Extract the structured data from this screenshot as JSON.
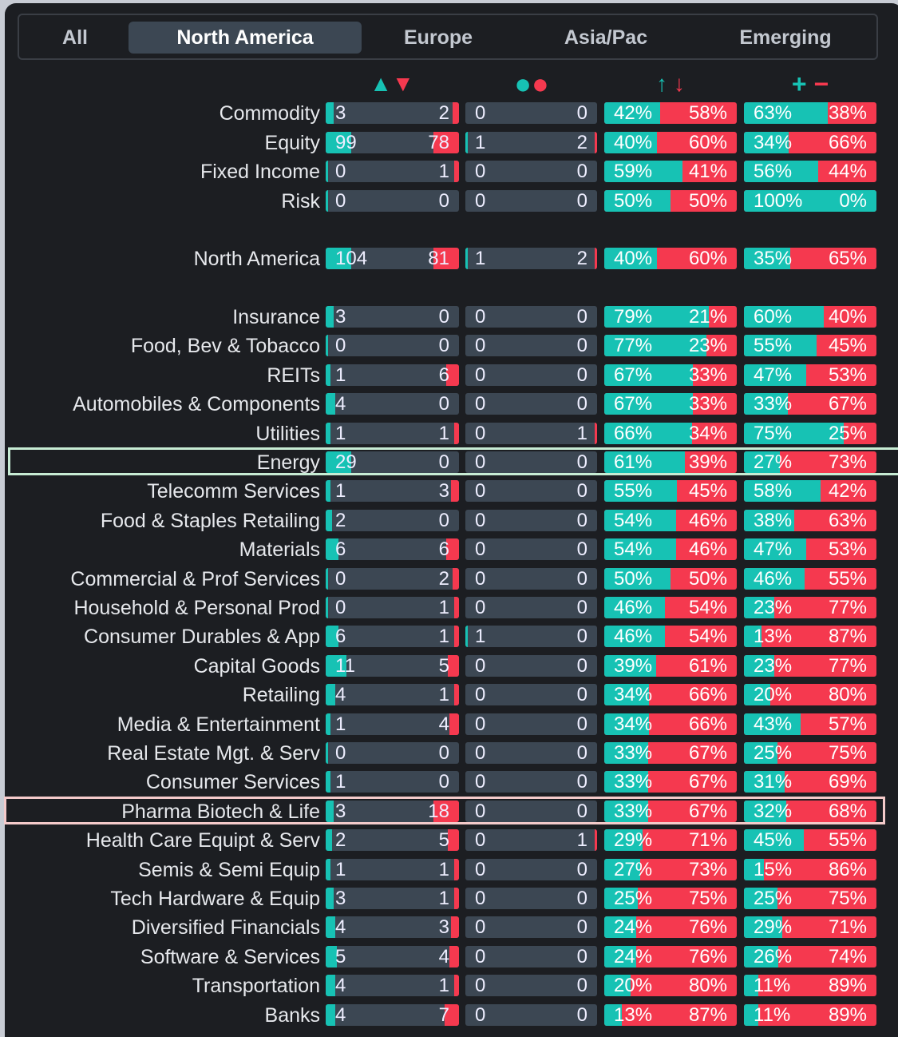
{
  "tabs": [
    "All",
    "North America",
    "Europe",
    "Asia/Pac",
    "Emerging"
  ],
  "active_tab": 1,
  "headers": {
    "counts": [
      "▲",
      "▼"
    ],
    "dots": [
      "●",
      "●"
    ],
    "arrows": [
      "↑",
      "↓"
    ],
    "signs": [
      "+",
      "−"
    ]
  },
  "colors": {
    "up": "#17c2b4",
    "down": "#f5394f",
    "bar": "#3c4753"
  },
  "groups": [
    {
      "rows": [
        [
          "Commodity",
          "3",
          "2",
          "0",
          "0",
          "42%",
          "58%",
          "63%",
          "38%"
        ],
        [
          "Equity",
          "99",
          "78",
          "1",
          "2",
          "40%",
          "60%",
          "34%",
          "66%"
        ],
        [
          "Fixed Income",
          "0",
          "1",
          "0",
          "0",
          "59%",
          "41%",
          "56%",
          "44%"
        ],
        [
          "Risk",
          "0",
          "0",
          "0",
          "0",
          "50%",
          "50%",
          "100%",
          "0%"
        ]
      ]
    },
    {
      "rows": [
        [
          "North America",
          "104",
          "81",
          "1",
          "2",
          "40%",
          "60%",
          "35%",
          "65%"
        ]
      ]
    },
    {
      "rows": [
        [
          "Insurance",
          "3",
          "0",
          "0",
          "0",
          "79%",
          "21%",
          "60%",
          "40%"
        ],
        [
          "Food, Bev & Tobacco",
          "0",
          "0",
          "0",
          "0",
          "77%",
          "23%",
          "55%",
          "45%"
        ],
        [
          "REITs",
          "1",
          "6",
          "0",
          "0",
          "67%",
          "33%",
          "47%",
          "53%"
        ],
        [
          "Automobiles & Components",
          "4",
          "0",
          "0",
          "0",
          "67%",
          "33%",
          "33%",
          "67%"
        ],
        [
          "Utilities",
          "1",
          "1",
          "0",
          "1",
          "66%",
          "34%",
          "75%",
          "25%"
        ],
        [
          "Energy",
          "29",
          "0",
          "0",
          "0",
          "61%",
          "39%",
          "27%",
          "73%"
        ],
        [
          "Telecomm Services",
          "1",
          "3",
          "0",
          "0",
          "55%",
          "45%",
          "58%",
          "42%"
        ],
        [
          "Food & Staples Retailing",
          "2",
          "0",
          "0",
          "0",
          "54%",
          "46%",
          "38%",
          "63%"
        ],
        [
          "Materials",
          "6",
          "6",
          "0",
          "0",
          "54%",
          "46%",
          "47%",
          "53%"
        ],
        [
          "Commercial & Prof Services",
          "0",
          "2",
          "0",
          "0",
          "50%",
          "50%",
          "46%",
          "55%"
        ],
        [
          "Household & Personal Prod",
          "0",
          "1",
          "0",
          "0",
          "46%",
          "54%",
          "23%",
          "77%"
        ],
        [
          "Consumer Durables & App",
          "6",
          "1",
          "1",
          "0",
          "46%",
          "54%",
          "13%",
          "87%"
        ],
        [
          "Capital Goods",
          "11",
          "5",
          "0",
          "0",
          "39%",
          "61%",
          "23%",
          "77%"
        ],
        [
          "Retailing",
          "4",
          "1",
          "0",
          "0",
          "34%",
          "66%",
          "20%",
          "80%"
        ],
        [
          "Media & Entertainment",
          "1",
          "4",
          "0",
          "0",
          "34%",
          "66%",
          "43%",
          "57%"
        ],
        [
          "Real Estate Mgt. & Serv",
          "0",
          "0",
          "0",
          "0",
          "33%",
          "67%",
          "25%",
          "75%"
        ],
        [
          "Consumer Services",
          "1",
          "0",
          "0",
          "0",
          "33%",
          "67%",
          "31%",
          "69%"
        ],
        [
          "Pharma Biotech & Life",
          "3",
          "18",
          "0",
          "0",
          "33%",
          "67%",
          "32%",
          "68%"
        ],
        [
          "Health Care Equipt & Serv",
          "2",
          "5",
          "0",
          "1",
          "29%",
          "71%",
          "45%",
          "55%"
        ],
        [
          "Semis & Semi Equip",
          "1",
          "1",
          "0",
          "0",
          "27%",
          "73%",
          "15%",
          "86%"
        ],
        [
          "Tech Hardware & Equip",
          "3",
          "1",
          "0",
          "0",
          "25%",
          "75%",
          "25%",
          "75%"
        ],
        [
          "Diversified Financials",
          "4",
          "3",
          "0",
          "0",
          "24%",
          "76%",
          "29%",
          "71%"
        ],
        [
          "Software & Services",
          "5",
          "4",
          "0",
          "0",
          "24%",
          "76%",
          "26%",
          "74%"
        ],
        [
          "Transportation",
          "4",
          "1",
          "0",
          "0",
          "20%",
          "80%",
          "11%",
          "89%"
        ],
        [
          "Banks",
          "4",
          "7",
          "0",
          "0",
          "13%",
          "87%",
          "11%",
          "89%"
        ]
      ]
    }
  ]
}
